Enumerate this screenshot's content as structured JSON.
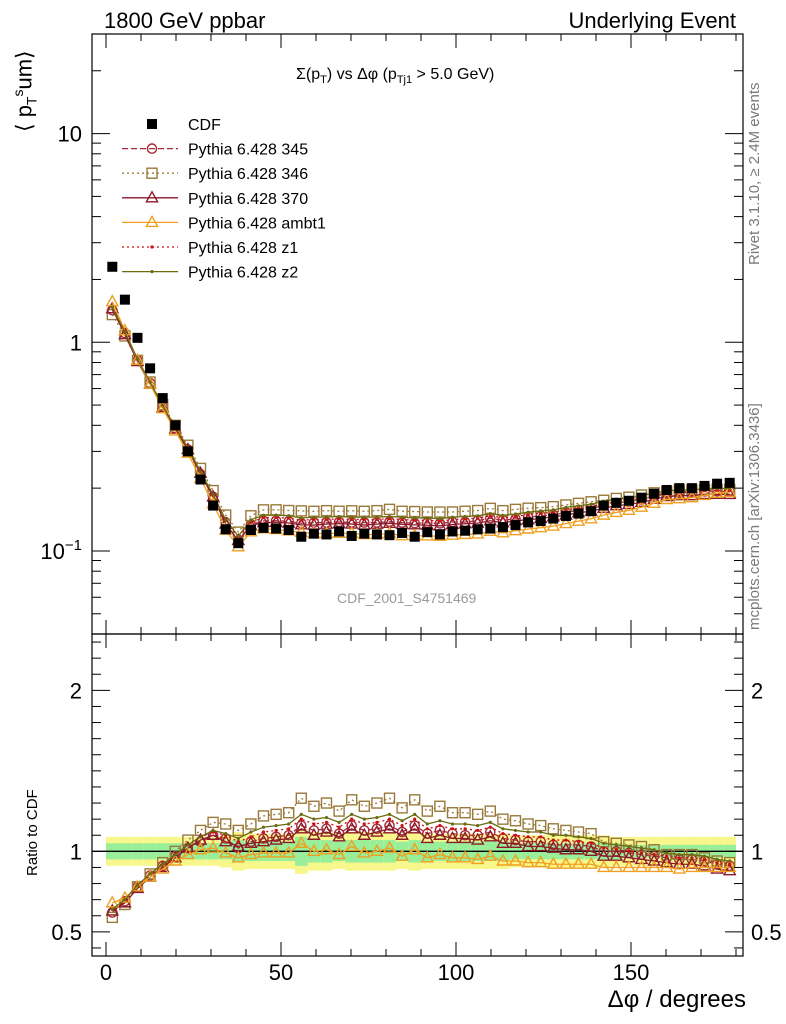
{
  "header": {
    "left": "1800 GeV ppbar",
    "right": "Underlying Event"
  },
  "side_labels": {
    "rivet": "Rivet 3.1.10, ≥ 2.4M events",
    "mcplots": "mcplots.cern.ch [arXiv:1306.3436]"
  },
  "watermark": "CDF_2001_S4751469",
  "chart_data": {
    "type": "scatter",
    "title": "Σ(p_T) vs Δφ (p_Tj1 > 5.0 GeV)",
    "xlabel": "Δφ / degrees",
    "ylabel": "⟨ p_T^sum ⟩",
    "ratio_ylabel": "Ratio to CDF",
    "xlim": [
      -4,
      182
    ],
    "ylim": [
      0.04,
      30
    ],
    "yscale": "log",
    "ratio_ylim": [
      0.35,
      2.35
    ],
    "grid": false,
    "legend_position": "top-left",
    "x_ticks": [
      "0",
      "50",
      "100",
      "150"
    ],
    "y_ticks": [
      "10^{-1}",
      "1",
      "10"
    ],
    "ratio_ticks": [
      "0.5",
      "1",
      "2"
    ],
    "x": [
      1.8,
      5.4,
      9.0,
      12.6,
      16.2,
      19.8,
      23.4,
      27.0,
      30.6,
      34.2,
      37.8,
      41.4,
      45.0,
      48.6,
      52.2,
      55.8,
      59.4,
      63.0,
      66.6,
      70.2,
      73.8,
      77.4,
      81.0,
      84.6,
      88.2,
      91.8,
      95.4,
      99.0,
      102.6,
      106.2,
      109.8,
      113.4,
      117.0,
      120.6,
      124.2,
      127.8,
      131.4,
      135.0,
      138.6,
      142.2,
      145.8,
      149.4,
      153.0,
      156.6,
      160.2,
      163.8,
      167.4,
      171.0,
      174.6,
      178.2
    ],
    "series": [
      {
        "name": "CDF",
        "color": "#000000",
        "marker": "square-filled",
        "values": [
          2.3,
          1.6,
          1.05,
          0.75,
          0.54,
          0.4,
          0.3,
          0.22,
          0.165,
          0.127,
          0.109,
          0.126,
          0.129,
          0.128,
          0.126,
          0.117,
          0.121,
          0.12,
          0.124,
          0.118,
          0.121,
          0.12,
          0.119,
          0.122,
          0.117,
          0.123,
          0.12,
          0.124,
          0.125,
          0.127,
          0.128,
          0.13,
          0.133,
          0.137,
          0.139,
          0.143,
          0.147,
          0.151,
          0.155,
          0.165,
          0.17,
          0.174,
          0.18,
          0.188,
          0.196,
          0.2,
          0.2,
          0.205,
          0.21,
          0.212
        ],
        "ratio_band_inner": [
          0.05,
          0.05,
          0.05,
          0.05,
          0.05,
          0.05,
          0.05,
          0.05,
          0.05,
          0.05,
          0.07,
          0.06,
          0.06,
          0.06,
          0.06,
          0.09,
          0.07,
          0.07,
          0.06,
          0.07,
          0.07,
          0.07,
          0.07,
          0.06,
          0.07,
          0.06,
          0.06,
          0.06,
          0.06,
          0.06,
          0.06,
          0.06,
          0.05,
          0.05,
          0.05,
          0.05,
          0.05,
          0.05,
          0.05,
          0.05,
          0.05,
          0.04,
          0.04,
          0.04,
          0.04,
          0.04,
          0.04,
          0.04,
          0.04,
          0.04
        ],
        "ratio_band_outer": [
          0.09,
          0.09,
          0.09,
          0.09,
          0.09,
          0.09,
          0.09,
          0.09,
          0.09,
          0.1,
          0.12,
          0.11,
          0.11,
          0.11,
          0.11,
          0.14,
          0.12,
          0.12,
          0.11,
          0.12,
          0.12,
          0.12,
          0.12,
          0.11,
          0.12,
          0.11,
          0.11,
          0.11,
          0.11,
          0.11,
          0.11,
          0.11,
          0.1,
          0.1,
          0.1,
          0.1,
          0.1,
          0.1,
          0.1,
          0.1,
          0.09,
          0.09,
          0.09,
          0.09,
          0.09,
          0.09,
          0.09,
          0.09,
          0.09,
          0.09
        ]
      },
      {
        "name": "Pythia 6.428 345",
        "color": "#a52a3a",
        "marker": "circle-open",
        "line": "dashed",
        "ratio": [
          0.62,
          0.69,
          0.78,
          0.85,
          0.91,
          0.97,
          1.02,
          1.06,
          1.1,
          1.08,
          1.02,
          1.06,
          1.08,
          1.09,
          1.1,
          1.16,
          1.13,
          1.14,
          1.11,
          1.16,
          1.13,
          1.14,
          1.16,
          1.12,
          1.16,
          1.11,
          1.13,
          1.11,
          1.1,
          1.1,
          1.12,
          1.08,
          1.07,
          1.06,
          1.06,
          1.04,
          1.04,
          1.04,
          1.03,
          1.0,
          1.0,
          0.99,
          0.98,
          0.97,
          0.96,
          0.95,
          0.95,
          0.94,
          0.92,
          0.91
        ]
      },
      {
        "name": "Pythia 6.428 346",
        "color": "#9a7a3a",
        "marker": "square-open",
        "line": "dotted",
        "ratio": [
          0.59,
          0.67,
          0.78,
          0.86,
          0.93,
          1.0,
          1.07,
          1.13,
          1.18,
          1.17,
          1.13,
          1.17,
          1.22,
          1.23,
          1.24,
          1.33,
          1.28,
          1.3,
          1.25,
          1.32,
          1.28,
          1.3,
          1.33,
          1.27,
          1.32,
          1.25,
          1.28,
          1.24,
          1.24,
          1.23,
          1.25,
          1.2,
          1.19,
          1.17,
          1.16,
          1.14,
          1.13,
          1.12,
          1.11,
          1.06,
          1.05,
          1.04,
          1.03,
          1.01,
          0.98,
          0.98,
          0.98,
          0.96,
          0.94,
          0.93
        ]
      },
      {
        "name": "Pythia 6.428 370",
        "color": "#8b1a2a",
        "marker": "triangle-open",
        "line": "solid",
        "ratio": [
          0.63,
          0.68,
          0.77,
          0.84,
          0.9,
          0.96,
          1.02,
          1.07,
          1.1,
          1.06,
          1.03,
          1.05,
          1.06,
          1.07,
          1.08,
          1.14,
          1.1,
          1.12,
          1.09,
          1.14,
          1.1,
          1.12,
          1.14,
          1.1,
          1.14,
          1.08,
          1.1,
          1.08,
          1.08,
          1.07,
          1.09,
          1.05,
          1.05,
          1.03,
          1.03,
          1.02,
          1.01,
          1.01,
          1.0,
          0.97,
          0.97,
          0.96,
          0.95,
          0.94,
          0.93,
          0.92,
          0.92,
          0.91,
          0.89,
          0.88
        ]
      },
      {
        "name": "Pythia 6.428 ambt1",
        "color": "#f0a020",
        "marker": "triangle-open",
        "line": "solid",
        "ratio": [
          0.68,
          0.71,
          0.78,
          0.84,
          0.89,
          0.94,
          0.98,
          1.01,
          1.02,
          0.99,
          0.96,
          0.98,
          0.99,
          0.99,
          0.99,
          1.05,
          1.0,
          1.01,
          0.98,
          1.03,
          0.99,
          1.0,
          1.02,
          0.97,
          1.01,
          0.96,
          0.98,
          0.96,
          0.96,
          0.95,
          0.97,
          0.94,
          0.94,
          0.93,
          0.93,
          0.92,
          0.92,
          0.92,
          0.92,
          0.9,
          0.9,
          0.9,
          0.9,
          0.9,
          0.9,
          0.89,
          0.9,
          0.9,
          0.9,
          0.9
        ]
      },
      {
        "name": "Pythia 6.428 z1",
        "color": "#cc1111",
        "marker": "dot",
        "line": "dotted",
        "ratio": [
          0.64,
          0.7,
          0.79,
          0.86,
          0.92,
          0.98,
          1.04,
          1.09,
          1.12,
          1.1,
          1.06,
          1.09,
          1.12,
          1.13,
          1.14,
          1.2,
          1.17,
          1.18,
          1.15,
          1.2,
          1.17,
          1.18,
          1.2,
          1.16,
          1.2,
          1.14,
          1.16,
          1.14,
          1.14,
          1.13,
          1.15,
          1.11,
          1.1,
          1.09,
          1.09,
          1.07,
          1.07,
          1.06,
          1.05,
          1.02,
          1.01,
          1.0,
          0.99,
          0.98,
          0.97,
          0.96,
          0.96,
          0.95,
          0.93,
          0.92
        ]
      },
      {
        "name": "Pythia 6.428 z2",
        "color": "#6b6b10",
        "marker": "dot",
        "line": "solid",
        "ratio": [
          0.64,
          0.7,
          0.79,
          0.86,
          0.92,
          0.98,
          1.04,
          1.09,
          1.13,
          1.11,
          1.08,
          1.12,
          1.15,
          1.16,
          1.17,
          1.23,
          1.2,
          1.21,
          1.18,
          1.23,
          1.2,
          1.21,
          1.23,
          1.19,
          1.23,
          1.17,
          1.19,
          1.17,
          1.17,
          1.16,
          1.18,
          1.14,
          1.13,
          1.12,
          1.12,
          1.1,
          1.1,
          1.09,
          1.08,
          1.05,
          1.04,
          1.03,
          1.02,
          1.01,
          0.99,
          0.98,
          0.98,
          0.97,
          0.95,
          0.94
        ]
      }
    ]
  }
}
